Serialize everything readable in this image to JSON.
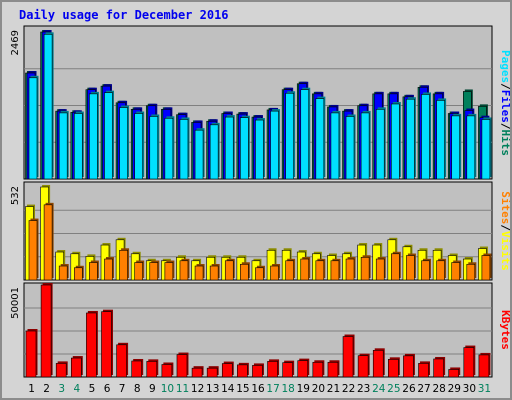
{
  "title": "Daily usage for December 2016",
  "colors": {
    "hits": "#00805c",
    "files": "#0000ff",
    "pages": "#00e0ff",
    "visits": "#ffff00",
    "sites": "#ff8000",
    "kbytes": "#ff0000",
    "weekday": "#000000",
    "weekend": "#00805c",
    "plot_bg": "#c0c0c0",
    "frame_bg": "#d4d4d4"
  },
  "chart_data": [
    {
      "type": "bar",
      "name": "hits-files-pages",
      "x": [
        "1",
        "2",
        "3",
        "4",
        "5",
        "6",
        "7",
        "8",
        "9",
        "10",
        "11",
        "12",
        "13",
        "14",
        "15",
        "16",
        "17",
        "18",
        "19",
        "20",
        "21",
        "22",
        "23",
        "24",
        "25",
        "26",
        "27",
        "28",
        "29",
        "30",
        "31"
      ],
      "max_label": "2469",
      "ylim": [
        0,
        2469
      ],
      "legend": [
        "Pages",
        "/",
        "Files",
        "/",
        "Hits"
      ],
      "series": [
        {
          "name": "Hits",
          "values": [
            1780,
            2469,
            1140,
            1120,
            1500,
            1560,
            1280,
            1170,
            1230,
            1170,
            1080,
            950,
            970,
            1100,
            1090,
            1040,
            1160,
            1500,
            1600,
            1430,
            1210,
            1140,
            1230,
            1430,
            1430,
            1380,
            1540,
            1430,
            1100,
            1470,
            1220
          ]
        },
        {
          "name": "Files",
          "values": [
            1780,
            2469,
            1140,
            1120,
            1500,
            1560,
            1280,
            1170,
            1230,
            1170,
            1080,
            950,
            970,
            1100,
            1090,
            1040,
            1160,
            1500,
            1600,
            1430,
            1210,
            1140,
            1230,
            1430,
            1430,
            1380,
            1540,
            1430,
            1100,
            1150,
            1030
          ]
        },
        {
          "name": "Pages",
          "values": [
            1700,
            2430,
            1110,
            1100,
            1430,
            1450,
            1200,
            1100,
            1050,
            1020,
            1000,
            820,
            910,
            1040,
            1030,
            990,
            1140,
            1440,
            1500,
            1350,
            1110,
            1050,
            1110,
            1170,
            1260,
            1340,
            1420,
            1320,
            1060,
            1060,
            1000
          ]
        }
      ]
    },
    {
      "type": "bar",
      "name": "visits-sites",
      "x": [
        "1",
        "2",
        "3",
        "4",
        "5",
        "6",
        "7",
        "8",
        "9",
        "10",
        "11",
        "12",
        "13",
        "14",
        "15",
        "16",
        "17",
        "18",
        "19",
        "20",
        "21",
        "22",
        "23",
        "24",
        "25",
        "26",
        "27",
        "28",
        "29",
        "30",
        "31"
      ],
      "max_label": "532",
      "ylim": [
        0,
        532
      ],
      "legend": [
        "Sites",
        "/",
        "Visits"
      ],
      "series": [
        {
          "name": "Visits",
          "values": [
            420,
            532,
            160,
            150,
            135,
            200,
            230,
            150,
            110,
            110,
            130,
            110,
            130,
            130,
            130,
            110,
            170,
            170,
            160,
            150,
            140,
            150,
            200,
            200,
            230,
            190,
            170,
            170,
            140,
            120,
            180
          ]
        },
        {
          "name": "Sites",
          "values": [
            340,
            430,
            80,
            70,
            100,
            120,
            170,
            100,
            100,
            100,
            110,
            80,
            80,
            110,
            90,
            70,
            80,
            110,
            120,
            110,
            110,
            120,
            130,
            120,
            150,
            140,
            110,
            110,
            100,
            90,
            140
          ]
        }
      ]
    },
    {
      "type": "bar",
      "name": "kbytes",
      "x": [
        "1",
        "2",
        "3",
        "4",
        "5",
        "6",
        "7",
        "8",
        "9",
        "10",
        "11",
        "12",
        "13",
        "14",
        "15",
        "16",
        "17",
        "18",
        "19",
        "20",
        "21",
        "22",
        "23",
        "24",
        "25",
        "26",
        "27",
        "28",
        "29",
        "30",
        "31"
      ],
      "max_label": "50001",
      "ylim": [
        0,
        50001
      ],
      "legend": [
        "KBytes"
      ],
      "series": [
        {
          "name": "KBytes",
          "values": [
            25000,
            50001,
            7400,
            10300,
            34800,
            35500,
            17500,
            8700,
            8500,
            6800,
            12200,
            4800,
            4800,
            7300,
            6600,
            6300,
            8500,
            7800,
            8900,
            8000,
            8000,
            22000,
            11600,
            14500,
            9600,
            11500,
            7400,
            9800,
            4100,
            16000,
            12000
          ]
        }
      ]
    }
  ],
  "weekend_days": [
    "3",
    "4",
    "10",
    "11",
    "17",
    "18",
    "24",
    "25",
    "31"
  ]
}
